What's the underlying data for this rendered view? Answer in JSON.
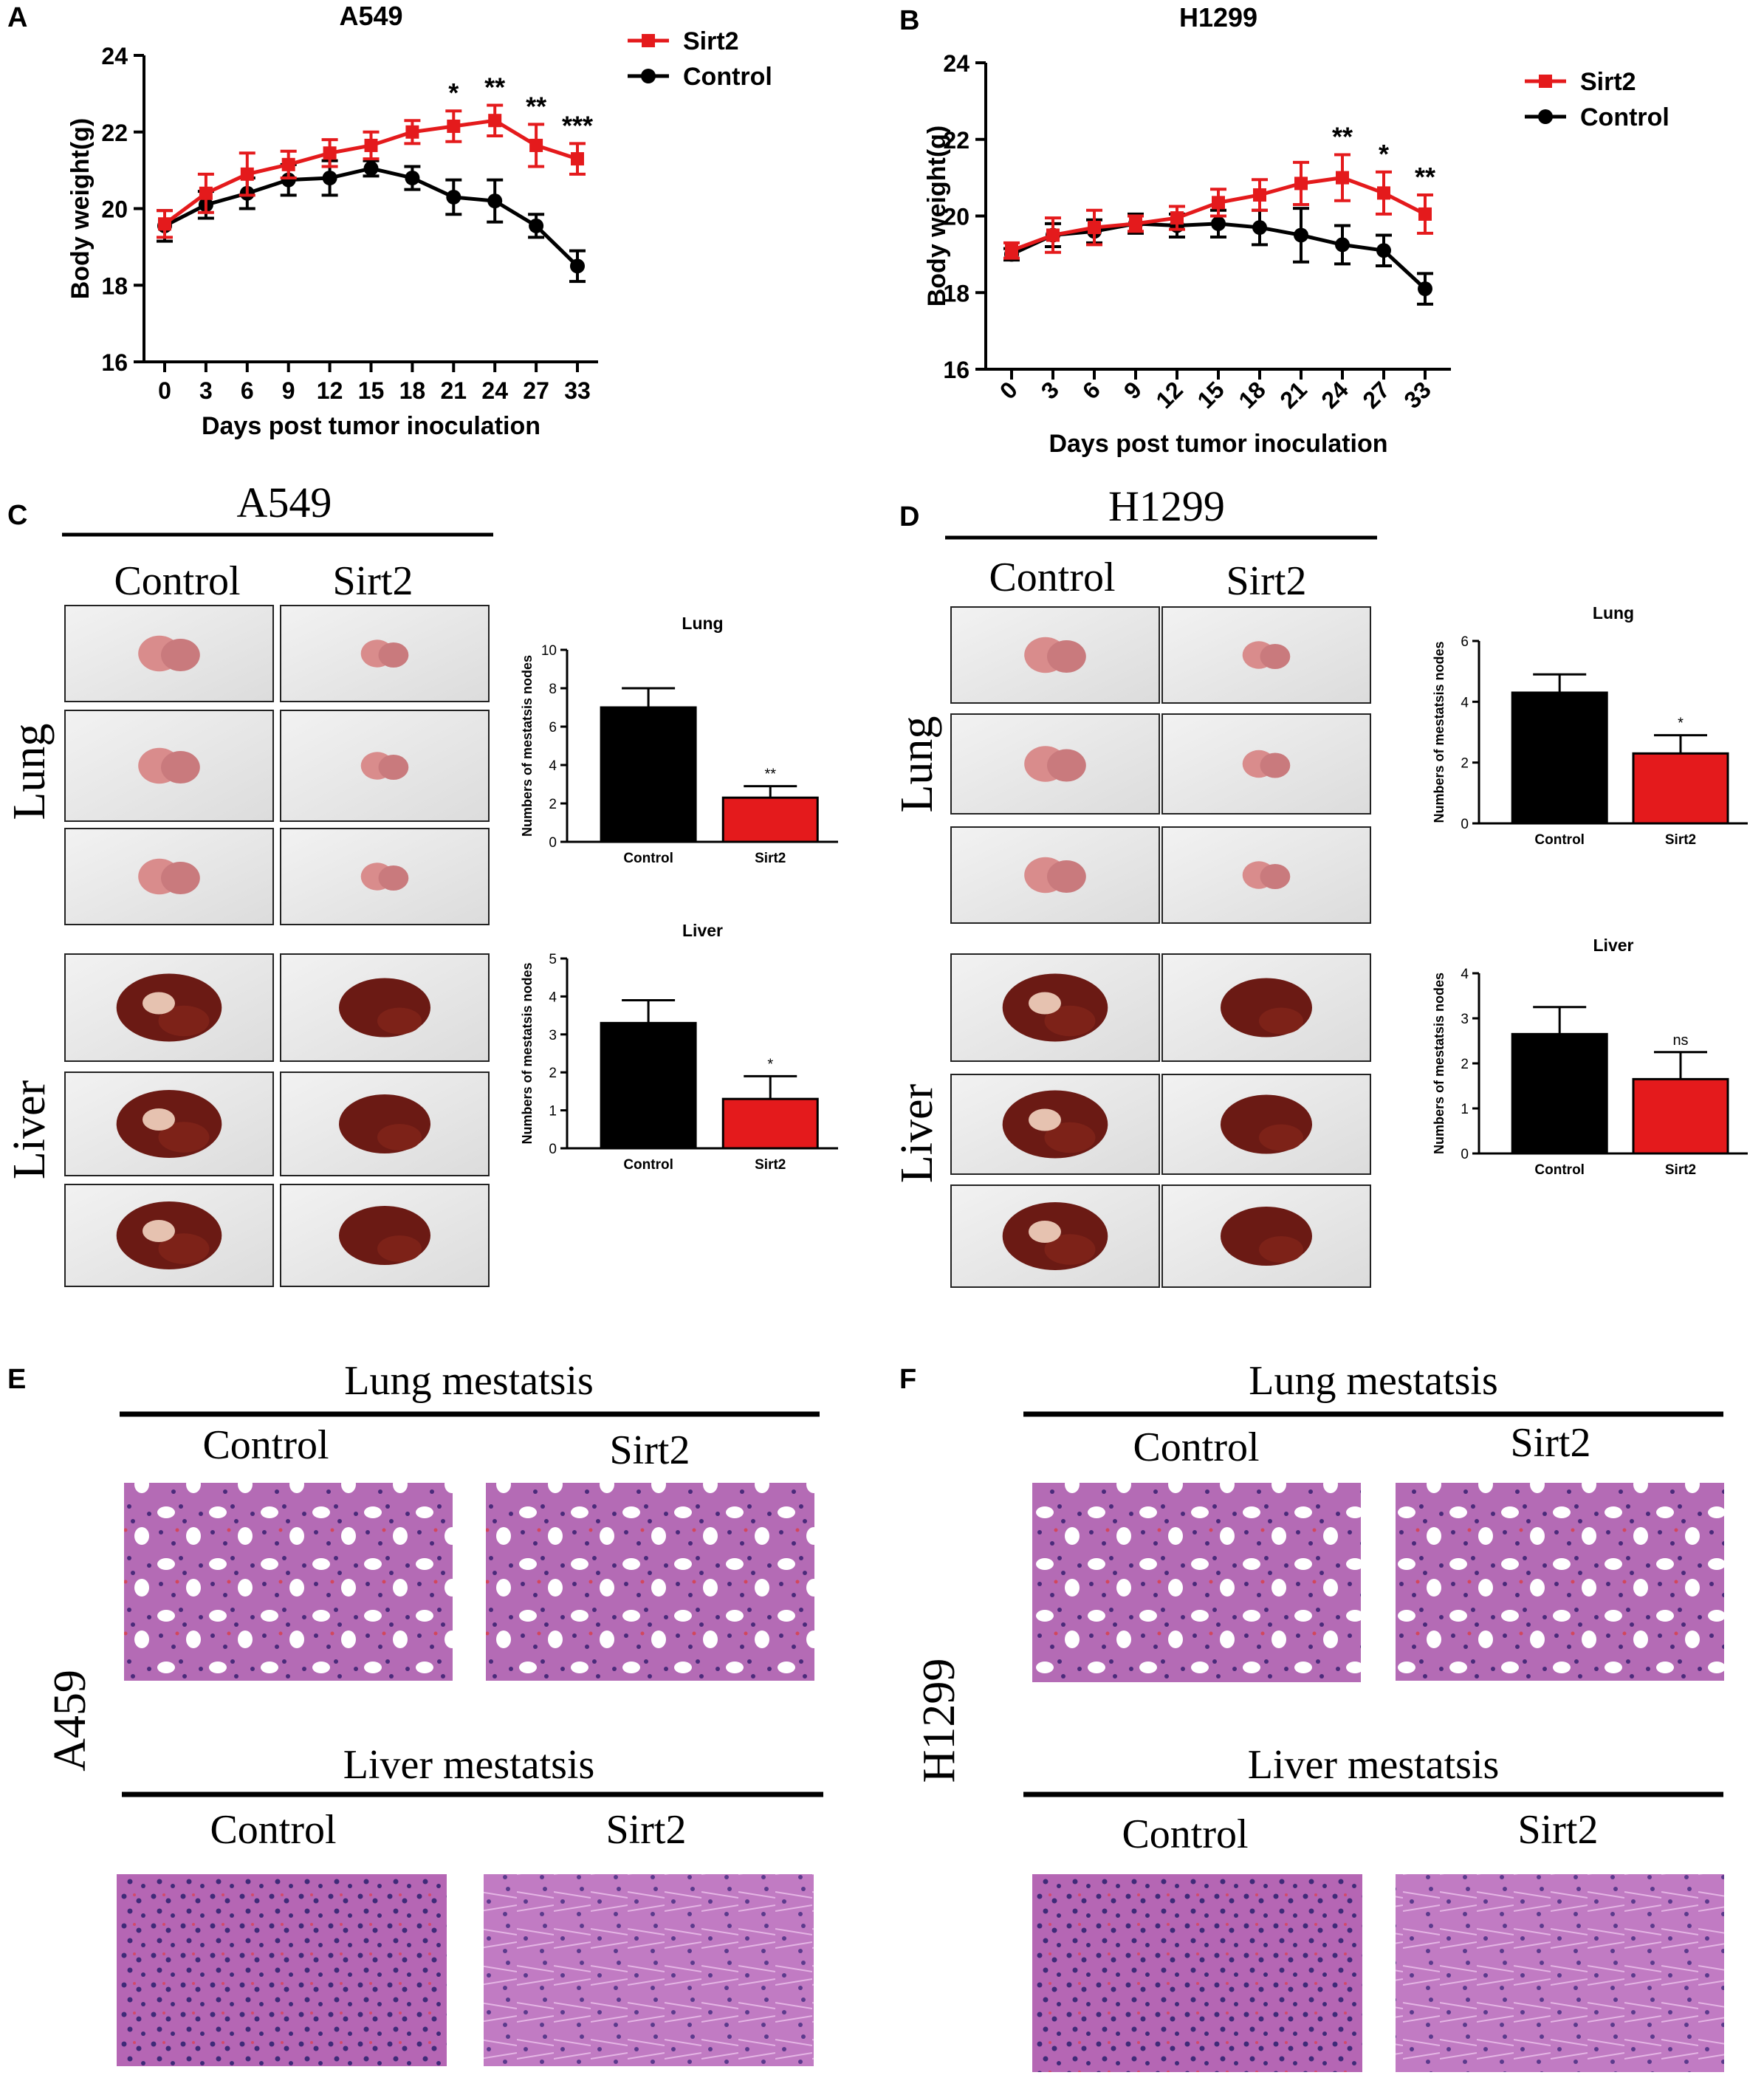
{
  "panel_labels": {
    "a": "A",
    "b": "B",
    "c": "C",
    "d": "D",
    "e": "E",
    "f": "F"
  },
  "colors": {
    "sirt2": "#e41a1c",
    "control": "#000000",
    "tissue_dark": "#6b1a14",
    "tissue_pink": "#d98c8c",
    "he_base": "#b56fb8"
  },
  "chart_data": [
    {
      "type": "line",
      "title": "A549",
      "xlabel": "Days post tumor inoculation",
      "ylabel": "Body weight(g)",
      "categories": [
        "0",
        "3",
        "6",
        "9",
        "12",
        "15",
        "18",
        "21",
        "24",
        "27",
        "33"
      ],
      "ylim": [
        16,
        24
      ],
      "yticks": [
        16,
        18,
        20,
        22,
        24
      ],
      "legend_position": "top-right",
      "series": [
        {
          "name": "Sirt2",
          "values": [
            19.6,
            20.4,
            20.9,
            21.15,
            21.45,
            21.65,
            22.0,
            22.15,
            22.3,
            21.65,
            21.3
          ],
          "errors": [
            0.35,
            0.5,
            0.55,
            0.35,
            0.35,
            0.35,
            0.3,
            0.4,
            0.4,
            0.55,
            0.4
          ]
        },
        {
          "name": "Control",
          "values": [
            19.55,
            20.1,
            20.4,
            20.75,
            20.8,
            21.05,
            20.8,
            20.3,
            20.2,
            19.55,
            18.5
          ],
          "errors": [
            0.4,
            0.35,
            0.4,
            0.4,
            0.45,
            0.2,
            0.3,
            0.45,
            0.55,
            0.3,
            0.4
          ]
        }
      ],
      "annotations": [
        {
          "category": "21",
          "text": "*"
        },
        {
          "category": "24",
          "text": "**"
        },
        {
          "category": "27",
          "text": "**"
        },
        {
          "category": "33",
          "text": "***"
        }
      ]
    },
    {
      "type": "line",
      "title": "H1299",
      "xlabel": "Days post tumor inoculation",
      "ylabel": "Body weight(g)",
      "categories": [
        "0",
        "3",
        "6",
        "9",
        "12",
        "15",
        "18",
        "21",
        "24",
        "27",
        "33"
      ],
      "ylim": [
        16,
        24
      ],
      "yticks": [
        16,
        18,
        20,
        22,
        24
      ],
      "legend_position": "top-right",
      "series": [
        {
          "name": "Sirt2",
          "values": [
            19.1,
            19.5,
            19.7,
            19.8,
            19.95,
            20.35,
            20.55,
            20.85,
            21.0,
            20.6,
            20.05
          ],
          "errors": [
            0.2,
            0.45,
            0.45,
            0.2,
            0.3,
            0.35,
            0.4,
            0.55,
            0.6,
            0.55,
            0.5
          ]
        },
        {
          "name": "Control",
          "values": [
            19.0,
            19.5,
            19.6,
            19.8,
            19.75,
            19.8,
            19.7,
            19.5,
            19.25,
            19.1,
            18.1
          ],
          "errors": [
            0.15,
            0.3,
            0.3,
            0.25,
            0.3,
            0.35,
            0.45,
            0.7,
            0.5,
            0.4,
            0.4
          ]
        }
      ],
      "annotations": [
        {
          "category": "24",
          "text": "**"
        },
        {
          "category": "27",
          "text": "*"
        },
        {
          "category": "33",
          "text": "**"
        }
      ]
    },
    {
      "type": "bar",
      "panel": "C",
      "title": "Lung",
      "ylabel": "Numbers of mestatsis nodes",
      "categories": [
        "Control",
        "Sirt2"
      ],
      "values": [
        7.0,
        2.3
      ],
      "errors": [
        1.0,
        0.6
      ],
      "ylim": [
        0,
        10
      ],
      "yticks": [
        0,
        2,
        4,
        6,
        8,
        10
      ],
      "annotations": [
        "",
        "**"
      ]
    },
    {
      "type": "bar",
      "panel": "C",
      "title": "Liver",
      "ylabel": "Numbers of mestatsis nodes",
      "categories": [
        "Control",
        "Sirt2"
      ],
      "values": [
        3.3,
        1.3
      ],
      "errors": [
        0.6,
        0.6
      ],
      "ylim": [
        0,
        5
      ],
      "yticks": [
        0,
        1,
        2,
        3,
        4,
        5
      ],
      "annotations": [
        "",
        "*"
      ]
    },
    {
      "type": "bar",
      "panel": "D",
      "title": "Lung",
      "ylabel": "Numbers of mestatsis nodes",
      "categories": [
        "Control",
        "Sirt2"
      ],
      "values": [
        4.3,
        2.3
      ],
      "errors": [
        0.6,
        0.6
      ],
      "ylim": [
        0,
        6
      ],
      "yticks": [
        0,
        2,
        4,
        6
      ],
      "annotations": [
        "",
        "*"
      ]
    },
    {
      "type": "bar",
      "panel": "D",
      "title": "Liver",
      "ylabel": "Numbers of mestatsis nodes",
      "categories": [
        "Control",
        "Sirt2"
      ],
      "values": [
        2.65,
        1.65
      ],
      "errors": [
        0.6,
        0.6
      ],
      "ylim": [
        0,
        4
      ],
      "yticks": [
        0,
        1,
        2,
        3,
        4
      ],
      "annotations": [
        "",
        "ns"
      ]
    }
  ],
  "panel_c": {
    "heading": "A549",
    "col_control": "Control",
    "col_sirt2": "Sirt2",
    "row_lung": "Lung",
    "row_liver": "Liver"
  },
  "panel_d": {
    "heading": "H1299",
    "col_control": "Control",
    "col_sirt2": "Sirt2",
    "row_lung": "Lung",
    "row_liver": "Liver"
  },
  "panel_e": {
    "side_label": "A459",
    "lung_heading": "Lung mestatsis",
    "liver_heading": "Liver mestatsis",
    "col_control": "Control",
    "col_sirt2": "Sirt2"
  },
  "panel_f": {
    "side_label": "H1299",
    "lung_heading": "Lung mestatsis",
    "liver_heading": "Liver mestatsis",
    "col_control": "Control",
    "col_sirt2": "Sirt2"
  }
}
